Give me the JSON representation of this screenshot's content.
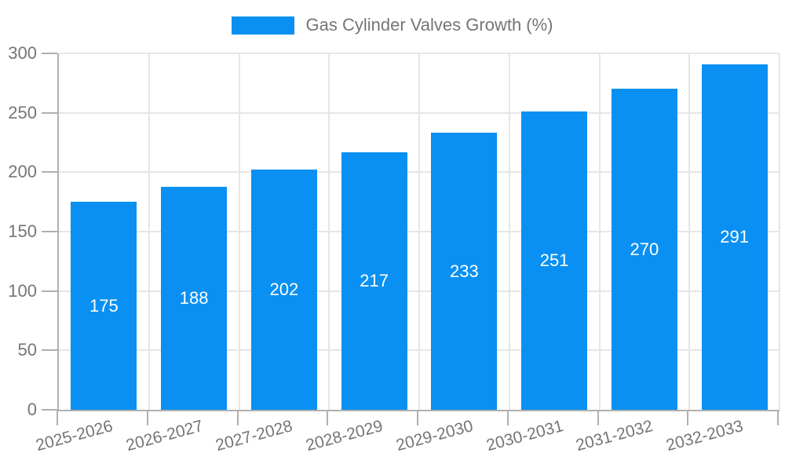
{
  "chart_data": {
    "type": "bar",
    "title": "Gas Cylinder Valves Growth (%)",
    "categories": [
      "2025-2026",
      "2026-2027",
      "2027-2028",
      "2028-2029",
      "2029-2030",
      "2030-2031",
      "2031-2032",
      "2032-2033"
    ],
    "values": [
      175,
      188,
      202,
      217,
      233,
      251,
      270,
      291
    ],
    "xlabel": "",
    "ylabel": "",
    "ylim": [
      0,
      300
    ],
    "yticks": [
      0,
      50,
      100,
      150,
      200,
      250,
      300
    ],
    "grid": true,
    "legend_position": "top",
    "value_labels": "inside-center",
    "colors": {
      "bar": "#0990f2",
      "grid": "#e6e6e6",
      "axis": "#b0b0b0",
      "tick": "#b0b0b0",
      "text": "#757575",
      "value_label": "#ffffff",
      "background": "#ffffff"
    }
  }
}
